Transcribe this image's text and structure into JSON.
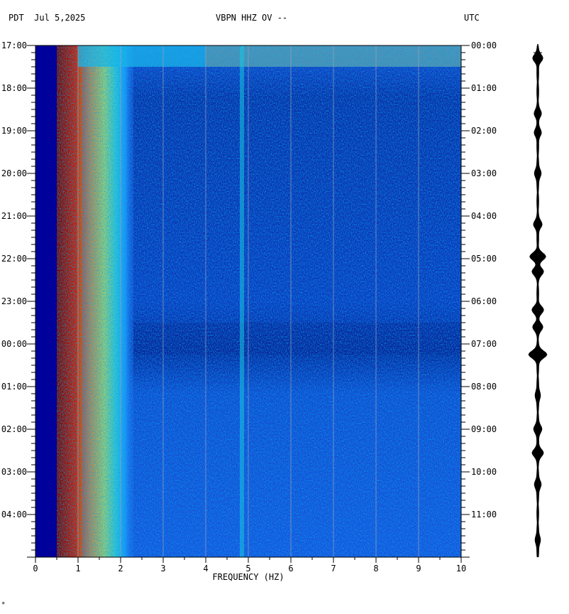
{
  "header": {
    "left": "PDT  Jul 5,2025",
    "center": "VBPN HHZ OV --",
    "right": "UTC"
  },
  "footer_mark": "*",
  "chart_data": {
    "type": "heatmap",
    "title": "VBPN HHZ OV --",
    "date": "Jul 5,2025",
    "left_timezone": "PDT",
    "right_timezone": "UTC",
    "xlabel": "FREQUENCY (HZ)",
    "xlim": [
      0,
      10
    ],
    "x_ticks": [
      "0",
      "1",
      "2",
      "3",
      "4",
      "5",
      "6",
      "7",
      "8",
      "9",
      "10"
    ],
    "y_ticks_left": [
      "17:00",
      "18:00",
      "19:00",
      "20:00",
      "21:00",
      "22:00",
      "23:00",
      "00:00",
      "01:00",
      "02:00",
      "03:00",
      "04:00"
    ],
    "y_ticks_right": [
      "00:00",
      "01:00",
      "02:00",
      "03:00",
      "04:00",
      "05:00",
      "06:00",
      "07:00",
      "08:00",
      "09:00",
      "10:00",
      "11:00"
    ],
    "hours_shown": 12,
    "colormap": [
      "#000080",
      "#0000ff",
      "#00c8ff",
      "#40ffc0",
      "#ffff00",
      "#ff8000",
      "#c00000",
      "#800000"
    ],
    "features": {
      "low_freq_cutoff_hz": 0.5,
      "microseism_band_hz": [
        0.5,
        1.0
      ],
      "persistent_line_hz": 4.85,
      "noisy_period_utc": [
        "00:00",
        "00:30"
      ],
      "quiet_band_utc": [
        "06:30",
        "07:15"
      ]
    },
    "grid": true,
    "seismogram_trace": true
  }
}
